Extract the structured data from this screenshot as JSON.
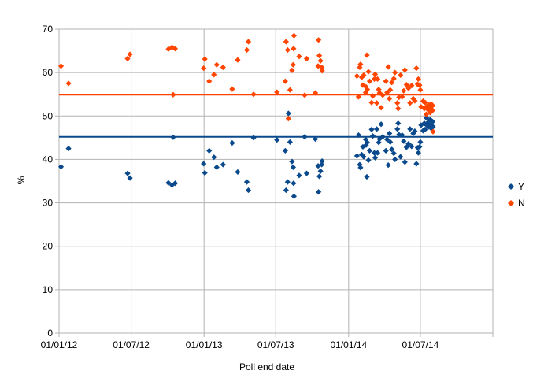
{
  "chart_data": {
    "type": "scatter",
    "xlabel": "Poll end date",
    "ylabel": "%",
    "ylim": [
      0,
      70
    ],
    "y_ticks": [
      0,
      10,
      20,
      30,
      40,
      50,
      60,
      70
    ],
    "x_range": [
      "2012-01-01",
      "2014-12-31"
    ],
    "x_ticks": [
      {
        "date": "2012-01-01",
        "label": "01/01/12"
      },
      {
        "date": "2012-07-01",
        "label": "01/07/12"
      },
      {
        "date": "2013-01-01",
        "label": "01/01/13"
      },
      {
        "date": "2013-07-01",
        "label": "01/07/13"
      },
      {
        "date": "2014-01-01",
        "label": "01/01/14"
      },
      {
        "date": "2014-07-01",
        "label": "01/07/14"
      }
    ],
    "grid": "horizontal and vertical",
    "legend_position": "right",
    "series": [
      {
        "name": "Y",
        "color": "#0a4a8c",
        "marker": "diamond",
        "trendline": 45.2,
        "points": [
          [
            "2012-01-06",
            38.3
          ],
          [
            "2012-01-25",
            42.5
          ],
          [
            "2012-06-22",
            36.8
          ],
          [
            "2012-06-28",
            35.7
          ],
          [
            "2012-10-03",
            34.6
          ],
          [
            "2012-10-12",
            34.1
          ],
          [
            "2012-10-15",
            45.1
          ],
          [
            "2012-10-20",
            34.5
          ],
          [
            "2012-12-31",
            39.0
          ],
          [
            "2013-01-03",
            36.9
          ],
          [
            "2013-01-14",
            42.0
          ],
          [
            "2013-01-26",
            40.5
          ],
          [
            "2013-02-02",
            38.2
          ],
          [
            "2013-02-18",
            38.8
          ],
          [
            "2013-03-13",
            43.8
          ],
          [
            "2013-03-27",
            37.1
          ],
          [
            "2013-04-19",
            34.8
          ],
          [
            "2013-04-23",
            32.9
          ],
          [
            "2013-05-06",
            45.0
          ],
          [
            "2013-07-04",
            44.5
          ],
          [
            "2013-07-25",
            42.0
          ],
          [
            "2013-07-27",
            32.9
          ],
          [
            "2013-07-31",
            34.8
          ],
          [
            "2013-08-02",
            50.6
          ],
          [
            "2013-08-06",
            44.0
          ],
          [
            "2013-08-11",
            39.5
          ],
          [
            "2013-08-14",
            38.2
          ],
          [
            "2013-08-15",
            34.5
          ],
          [
            "2013-08-16",
            31.5
          ],
          [
            "2013-08-29",
            36.3
          ],
          [
            "2013-09-12",
            45.2
          ],
          [
            "2013-09-17",
            36.8
          ],
          [
            "2013-10-09",
            44.7
          ],
          [
            "2013-10-16",
            38.5
          ],
          [
            "2013-10-17",
            32.5
          ],
          [
            "2013-10-19",
            36.1
          ],
          [
            "2013-10-22",
            37.3
          ],
          [
            "2013-10-25",
            38.8
          ],
          [
            "2013-10-26",
            39.6
          ],
          [
            "2014-01-22",
            40.8
          ],
          [
            "2014-01-26",
            45.6
          ],
          [
            "2014-01-29",
            38.8
          ],
          [
            "2014-01-31",
            38.1
          ],
          [
            "2014-02-03",
            41.1
          ],
          [
            "2014-02-06",
            42.9
          ],
          [
            "2014-02-08",
            40.6
          ],
          [
            "2014-02-13",
            44.6
          ],
          [
            "2014-02-14",
            43.3
          ],
          [
            "2014-02-16",
            36.0
          ],
          [
            "2014-02-17",
            43.9
          ],
          [
            "2014-02-20",
            39.8
          ],
          [
            "2014-02-23",
            42.0
          ],
          [
            "2014-02-28",
            46.9
          ],
          [
            "2014-03-03",
            45.4
          ],
          [
            "2014-03-07",
            41.5
          ],
          [
            "2014-03-09",
            40.4
          ],
          [
            "2014-03-13",
            47.0
          ],
          [
            "2014-03-15",
            41.5
          ],
          [
            "2014-03-18",
            43.9
          ],
          [
            "2014-03-20",
            44.7
          ],
          [
            "2014-03-24",
            48.1
          ],
          [
            "2014-03-28",
            45.2
          ],
          [
            "2014-04-05",
            42.0
          ],
          [
            "2014-04-08",
            44.6
          ],
          [
            "2014-04-11",
            38.7
          ],
          [
            "2014-04-14",
            46.0
          ],
          [
            "2014-04-16",
            44.0
          ],
          [
            "2014-04-20",
            42.3
          ],
          [
            "2014-04-25",
            41.4
          ],
          [
            "2014-04-28",
            40.0
          ],
          [
            "2014-05-04",
            47.0
          ],
          [
            "2014-05-06",
            48.3
          ],
          [
            "2014-05-08",
            45.7
          ],
          [
            "2014-05-12",
            40.6
          ],
          [
            "2014-05-16",
            45.6
          ],
          [
            "2014-05-20",
            44.2
          ],
          [
            "2014-05-23",
            39.4
          ],
          [
            "2014-05-27",
            42.8
          ],
          [
            "2014-06-01",
            43.6
          ],
          [
            "2014-06-05",
            47.0
          ],
          [
            "2014-06-09",
            43.0
          ],
          [
            "2014-06-13",
            46.0
          ],
          [
            "2014-06-17",
            46.5
          ],
          [
            "2014-06-21",
            39.0
          ],
          [
            "2014-06-24",
            42.7
          ],
          [
            "2014-06-26",
            41.5
          ],
          [
            "2014-06-29",
            42.9
          ],
          [
            "2014-07-01",
            44.0
          ],
          [
            "2014-07-03",
            47.9
          ],
          [
            "2014-07-08",
            46.6
          ],
          [
            "2014-07-11",
            48.3
          ],
          [
            "2014-07-13",
            46.9
          ],
          [
            "2014-07-16",
            49.6
          ],
          [
            "2014-07-18",
            47.8
          ],
          [
            "2014-07-20",
            48.5
          ],
          [
            "2014-07-22",
            47.5
          ],
          [
            "2014-07-24",
            48.0
          ],
          [
            "2014-07-26",
            49.2
          ],
          [
            "2014-07-28",
            47.2
          ],
          [
            "2014-07-30",
            47.8
          ],
          [
            "2014-07-31",
            47.5
          ],
          [
            "2014-08-01",
            48.7
          ],
          [
            "2014-08-02",
            47.5
          ]
        ]
      },
      {
        "name": "N",
        "color": "#ff4500",
        "marker": "diamond",
        "trendline": 54.9,
        "points": [
          [
            "2012-01-06",
            61.5
          ],
          [
            "2012-01-25",
            57.5
          ],
          [
            "2012-06-22",
            63.2
          ],
          [
            "2012-06-28",
            64.2
          ],
          [
            "2012-10-03",
            65.4
          ],
          [
            "2012-10-12",
            65.8
          ],
          [
            "2012-10-15",
            54.9
          ],
          [
            "2012-10-20",
            65.5
          ],
          [
            "2012-12-31",
            61.0
          ],
          [
            "2013-01-03",
            63.1
          ],
          [
            "2013-01-14",
            58.0
          ],
          [
            "2013-01-26",
            59.5
          ],
          [
            "2013-02-02",
            61.8
          ],
          [
            "2013-02-18",
            61.2
          ],
          [
            "2013-03-13",
            56.2
          ],
          [
            "2013-03-27",
            62.9
          ],
          [
            "2013-04-19",
            65.2
          ],
          [
            "2013-04-23",
            67.1
          ],
          [
            "2013-05-06",
            55.0
          ],
          [
            "2013-07-04",
            55.5
          ],
          [
            "2013-07-25",
            58.0
          ],
          [
            "2013-07-27",
            67.1
          ],
          [
            "2013-07-31",
            65.2
          ],
          [
            "2013-08-02",
            49.4
          ],
          [
            "2013-08-06",
            56.0
          ],
          [
            "2013-08-11",
            60.5
          ],
          [
            "2013-08-14",
            61.8
          ],
          [
            "2013-08-15",
            65.5
          ],
          [
            "2013-08-16",
            68.5
          ],
          [
            "2013-08-29",
            63.7
          ],
          [
            "2013-09-12",
            54.8
          ],
          [
            "2013-09-17",
            63.2
          ],
          [
            "2013-10-09",
            55.3
          ],
          [
            "2013-10-16",
            61.5
          ],
          [
            "2013-10-17",
            67.5
          ],
          [
            "2013-10-19",
            63.9
          ],
          [
            "2013-10-22",
            62.7
          ],
          [
            "2013-10-25",
            61.2
          ],
          [
            "2013-10-26",
            60.4
          ],
          [
            "2014-01-22",
            59.2
          ],
          [
            "2014-01-26",
            54.4
          ],
          [
            "2014-01-29",
            61.2
          ],
          [
            "2014-01-31",
            61.9
          ],
          [
            "2014-02-03",
            58.9
          ],
          [
            "2014-02-06",
            57.1
          ],
          [
            "2014-02-08",
            59.4
          ],
          [
            "2014-02-13",
            55.4
          ],
          [
            "2014-02-14",
            56.7
          ],
          [
            "2014-02-16",
            64.0
          ],
          [
            "2014-02-17",
            56.1
          ],
          [
            "2014-02-20",
            60.2
          ],
          [
            "2014-02-23",
            58.0
          ],
          [
            "2014-02-28",
            53.1
          ],
          [
            "2014-03-03",
            54.6
          ],
          [
            "2014-03-07",
            58.5
          ],
          [
            "2014-03-09",
            59.6
          ],
          [
            "2014-03-13",
            53.0
          ],
          [
            "2014-03-15",
            58.5
          ],
          [
            "2014-03-18",
            56.1
          ],
          [
            "2014-03-20",
            55.3
          ],
          [
            "2014-03-24",
            51.9
          ],
          [
            "2014-03-28",
            54.8
          ],
          [
            "2014-04-05",
            58.0
          ],
          [
            "2014-04-08",
            55.4
          ],
          [
            "2014-04-11",
            61.3
          ],
          [
            "2014-04-14",
            54.0
          ],
          [
            "2014-04-16",
            56.0
          ],
          [
            "2014-04-20",
            57.7
          ],
          [
            "2014-04-25",
            58.6
          ],
          [
            "2014-04-28",
            60.0
          ],
          [
            "2014-05-04",
            53.0
          ],
          [
            "2014-05-06",
            51.7
          ],
          [
            "2014-05-08",
            54.3
          ],
          [
            "2014-05-12",
            59.4
          ],
          [
            "2014-05-16",
            54.4
          ],
          [
            "2014-05-20",
            55.8
          ],
          [
            "2014-05-23",
            60.6
          ],
          [
            "2014-05-27",
            57.2
          ],
          [
            "2014-06-01",
            56.4
          ],
          [
            "2014-06-05",
            53.0
          ],
          [
            "2014-06-09",
            57.0
          ],
          [
            "2014-06-13",
            54.0
          ],
          [
            "2014-06-17",
            53.5
          ],
          [
            "2014-06-21",
            61.0
          ],
          [
            "2014-06-24",
            57.3
          ],
          [
            "2014-06-26",
            58.5
          ],
          [
            "2014-06-29",
            57.1
          ],
          [
            "2014-07-01",
            56.0
          ],
          [
            "2014-07-03",
            52.1
          ],
          [
            "2014-07-08",
            53.4
          ],
          [
            "2014-07-11",
            51.7
          ],
          [
            "2014-07-13",
            53.1
          ],
          [
            "2014-07-16",
            50.4
          ],
          [
            "2014-07-18",
            52.2
          ],
          [
            "2014-07-20",
            51.5
          ],
          [
            "2014-07-22",
            52.5
          ],
          [
            "2014-07-24",
            52.0
          ],
          [
            "2014-07-26",
            50.8
          ],
          [
            "2014-07-28",
            52.8
          ],
          [
            "2014-07-30",
            52.2
          ],
          [
            "2014-07-31",
            52.5
          ],
          [
            "2014-08-01",
            51.3
          ],
          [
            "2014-08-02",
            46.4
          ]
        ]
      }
    ]
  }
}
